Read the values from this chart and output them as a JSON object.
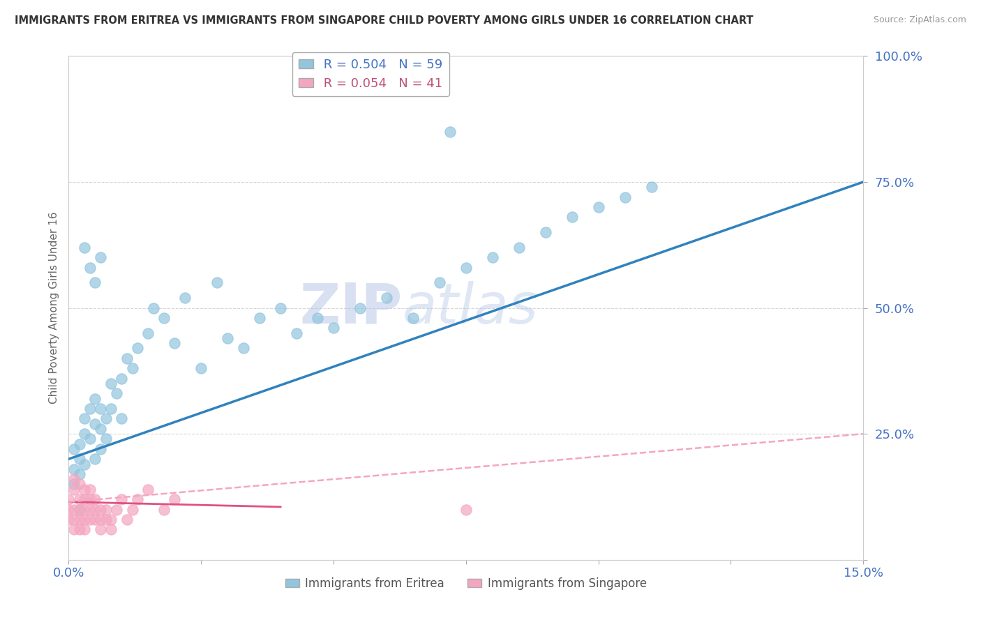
{
  "title": "IMMIGRANTS FROM ERITREA VS IMMIGRANTS FROM SINGAPORE CHILD POVERTY AMONG GIRLS UNDER 16 CORRELATION CHART",
  "source": "Source: ZipAtlas.com",
  "ylabel": "Child Poverty Among Girls Under 16",
  "xlim": [
    0,
    0.15
  ],
  "ylim": [
    0,
    1.0
  ],
  "yticks": [
    0.0,
    0.25,
    0.5,
    0.75,
    1.0
  ],
  "xticks": [
    0.0,
    0.025,
    0.05,
    0.075,
    0.1,
    0.125,
    0.15
  ],
  "eritrea_color": "#92c5de",
  "singapore_color": "#f4a6c0",
  "eritrea_R": 0.504,
  "eritrea_N": 59,
  "singapore_R": 0.054,
  "singapore_N": 41,
  "trend_eritrea_color": "#3182bd",
  "trend_singapore_color_solid": "#e05080",
  "trend_singapore_color_dashed": "#f4a6c0",
  "watermark_zip": "ZIP",
  "watermark_atlas": "atlas",
  "background_color": "#ffffff",
  "grid_color": "#cccccc",
  "eritrea_scatter_x": [
    0.001,
    0.001,
    0.001,
    0.002,
    0.002,
    0.002,
    0.002,
    0.003,
    0.003,
    0.003,
    0.004,
    0.004,
    0.005,
    0.005,
    0.005,
    0.006,
    0.006,
    0.006,
    0.007,
    0.007,
    0.008,
    0.008,
    0.009,
    0.01,
    0.01,
    0.011,
    0.012,
    0.013,
    0.015,
    0.016,
    0.018,
    0.02,
    0.022,
    0.025,
    0.028,
    0.03,
    0.033,
    0.036,
    0.04,
    0.043,
    0.047,
    0.05,
    0.055,
    0.06,
    0.065,
    0.07,
    0.075,
    0.08,
    0.085,
    0.09,
    0.095,
    0.1,
    0.105,
    0.11,
    0.003,
    0.004,
    0.005,
    0.006,
    0.072
  ],
  "eritrea_scatter_y": [
    0.18,
    0.22,
    0.15,
    0.2,
    0.23,
    0.17,
    0.1,
    0.25,
    0.28,
    0.19,
    0.3,
    0.24,
    0.27,
    0.2,
    0.32,
    0.26,
    0.22,
    0.3,
    0.28,
    0.24,
    0.35,
    0.3,
    0.33,
    0.28,
    0.36,
    0.4,
    0.38,
    0.42,
    0.45,
    0.5,
    0.48,
    0.43,
    0.52,
    0.38,
    0.55,
    0.44,
    0.42,
    0.48,
    0.5,
    0.45,
    0.48,
    0.46,
    0.5,
    0.52,
    0.48,
    0.55,
    0.58,
    0.6,
    0.62,
    0.65,
    0.68,
    0.7,
    0.72,
    0.74,
    0.62,
    0.58,
    0.55,
    0.6,
    0.85
  ],
  "singapore_scatter_x": [
    0.0,
    0.0,
    0.0,
    0.001,
    0.001,
    0.001,
    0.001,
    0.001,
    0.002,
    0.002,
    0.002,
    0.002,
    0.002,
    0.003,
    0.003,
    0.003,
    0.003,
    0.003,
    0.004,
    0.004,
    0.004,
    0.004,
    0.005,
    0.005,
    0.005,
    0.006,
    0.006,
    0.006,
    0.007,
    0.007,
    0.008,
    0.008,
    0.009,
    0.01,
    0.011,
    0.012,
    0.013,
    0.015,
    0.018,
    0.02,
    0.075
  ],
  "singapore_scatter_y": [
    0.08,
    0.1,
    0.12,
    0.06,
    0.08,
    0.1,
    0.14,
    0.16,
    0.08,
    0.12,
    0.15,
    0.1,
    0.06,
    0.1,
    0.12,
    0.08,
    0.14,
    0.06,
    0.1,
    0.08,
    0.12,
    0.14,
    0.08,
    0.1,
    0.12,
    0.06,
    0.08,
    0.1,
    0.08,
    0.1,
    0.06,
    0.08,
    0.1,
    0.12,
    0.08,
    0.1,
    0.12,
    0.14,
    0.1,
    0.12,
    0.1
  ],
  "eritrea_trend_x0": 0.0,
  "eritrea_trend_y0": 0.2,
  "eritrea_trend_x1": 0.15,
  "eritrea_trend_y1": 0.75,
  "singapore_trend_solid_x0": 0.0,
  "singapore_trend_solid_y0": 0.115,
  "singapore_trend_solid_x1": 0.04,
  "singapore_trend_solid_y1": 0.105,
  "singapore_trend_dashed_x0": 0.0,
  "singapore_trend_dashed_y0": 0.115,
  "singapore_trend_dashed_x1": 0.15,
  "singapore_trend_dashed_y1": 0.25
}
